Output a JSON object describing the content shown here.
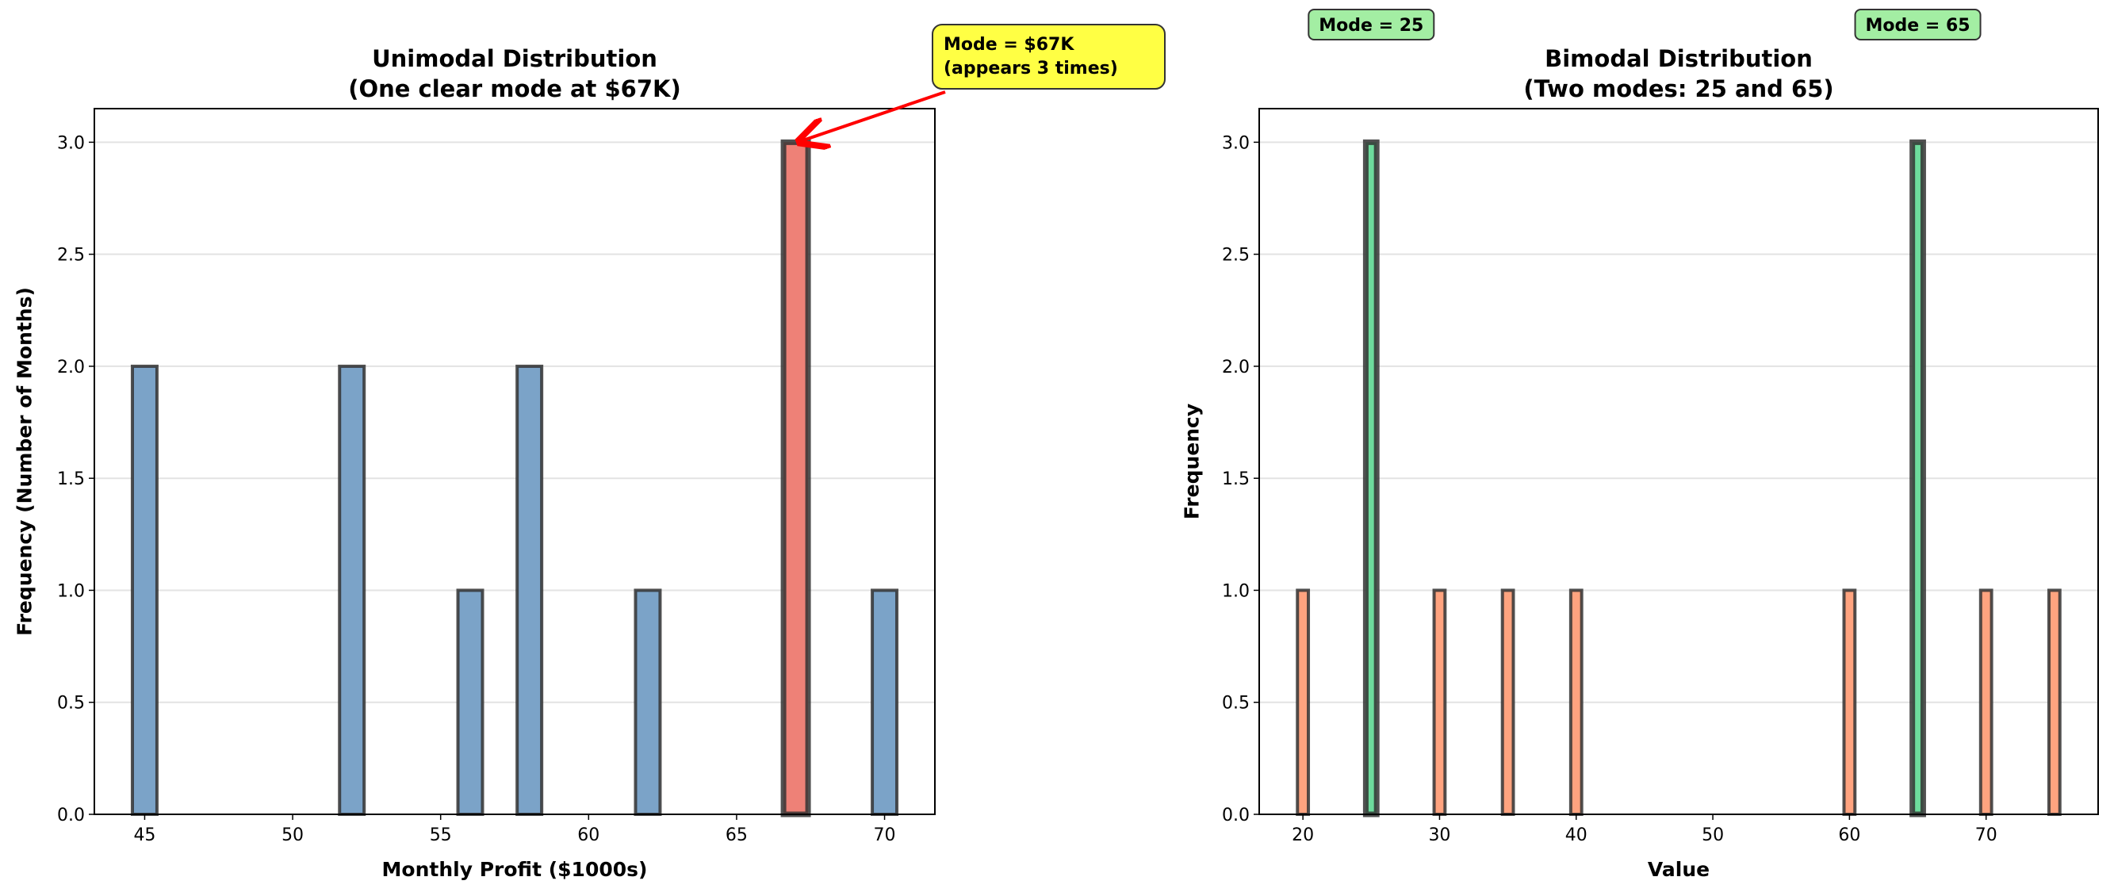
{
  "chart_data": [
    {
      "type": "bar",
      "title": "Unimodal Distribution",
      "subtitle": "(One clear mode at $67K)",
      "xlabel": "Monthly Profit ($1000s)",
      "ylabel": "Frequency (Number of Months)",
      "xlim": [
        43.3,
        71.7
      ],
      "ylim": [
        0,
        3.15
      ],
      "xticks": [
        45,
        50,
        55,
        60,
        65,
        70
      ],
      "yticks": [
        "0.0",
        "0.5",
        "1.0",
        "1.5",
        "2.0",
        "2.5",
        "3.0"
      ],
      "grid": "y",
      "bin_width": 0.83,
      "x": [
        45,
        52,
        56,
        58,
        62,
        67,
        70
      ],
      "values": [
        2,
        2,
        1,
        2,
        1,
        3,
        1
      ],
      "highlight": [
        67
      ],
      "colors": {
        "bar": "#7BA3C8",
        "highlight": "#EE8177",
        "edge": "#333333"
      },
      "annotations": [
        {
          "lines": [
            "Mode = $67K",
            "(appears 3 times)"
          ],
          "x": 67,
          "y": 3,
          "color": "#FFFF44",
          "arrow_color": "#FF0000"
        }
      ]
    },
    {
      "type": "bar",
      "title": "Bimodal Distribution",
      "subtitle": "(Two modes: 25 and 65)",
      "xlabel": "Value",
      "ylabel": "Frequency",
      "xlim": [
        16.8,
        78.2
      ],
      "ylim": [
        0,
        3.15
      ],
      "xticks": [
        20,
        30,
        40,
        50,
        60,
        70
      ],
      "yticks": [
        "0.0",
        "0.5",
        "1.0",
        "1.5",
        "2.0",
        "2.5",
        "3.0"
      ],
      "grid": "y",
      "bin_width": 0.8,
      "x": [
        20,
        25,
        30,
        35,
        40,
        60,
        65,
        70,
        75
      ],
      "values": [
        1,
        3,
        1,
        1,
        1,
        1,
        3,
        1,
        1
      ],
      "highlight": [
        25,
        65
      ],
      "colors": {
        "bar": "#FFA37F",
        "highlight": "#6DDB9C",
        "edge": "#333333"
      },
      "annotations": [
        {
          "lines": [
            "Mode = 25"
          ],
          "x": 25,
          "color": "#A3EEA3"
        },
        {
          "lines": [
            "Mode = 65"
          ],
          "x": 65,
          "color": "#A3EEA3"
        }
      ]
    }
  ]
}
